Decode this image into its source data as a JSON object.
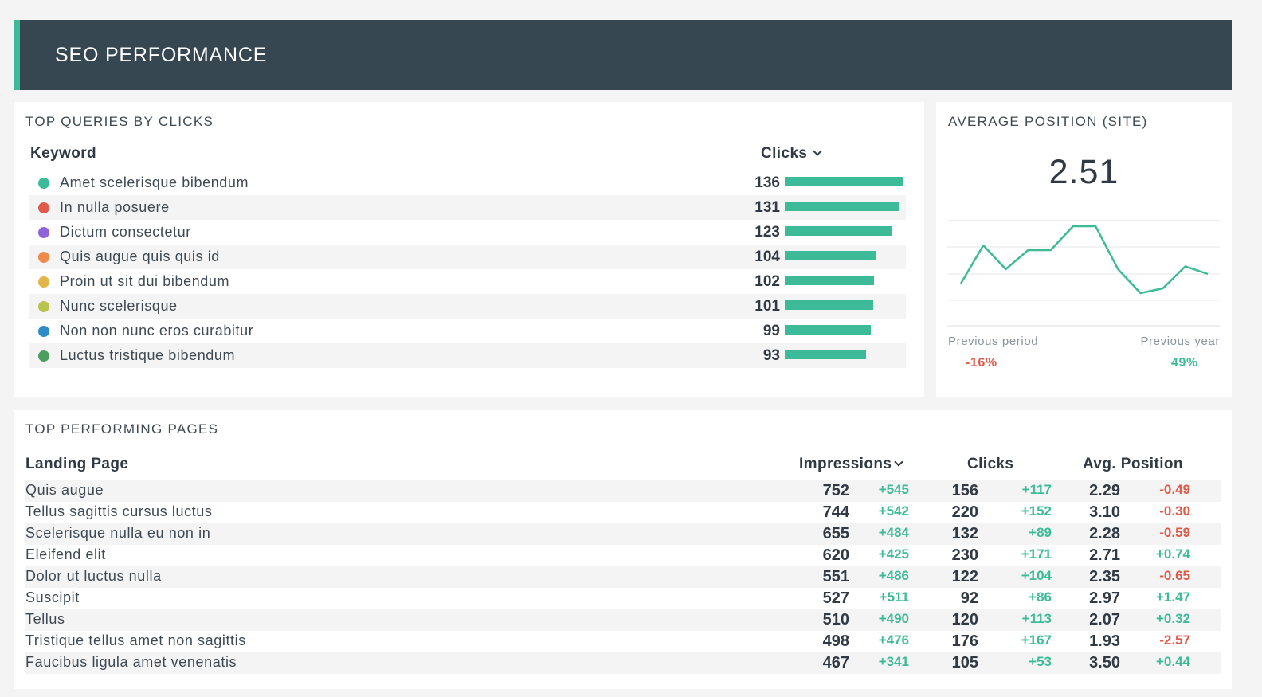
{
  "header": {
    "title": "SEO PERFORMANCE"
  },
  "queries": {
    "title": "TOP QUERIES BY CLICKS",
    "col_keyword": "Keyword",
    "col_clicks": "Clicks",
    "rows": [
      {
        "label": "Amet scelerisque bibendum",
        "value": "136",
        "clicks": 136,
        "color": "#3dbb99"
      },
      {
        "label": "In nulla posuere",
        "value": "131",
        "clicks": 131,
        "color": "#e05a4a"
      },
      {
        "label": "Dictum consectetur",
        "value": "123",
        "clicks": 123,
        "color": "#8e65d8"
      },
      {
        "label": "Quis augue quis quis id",
        "value": "104",
        "clicks": 104,
        "color": "#ee8a4a"
      },
      {
        "label": "Proin ut sit dui bibendum",
        "value": "102",
        "clicks": 102,
        "color": "#e3b548"
      },
      {
        "label": "Nunc scelerisque",
        "value": "101",
        "clicks": 101,
        "color": "#b9c44c"
      },
      {
        "label": "Non non nunc eros curabitur",
        "value": "99",
        "clicks": 99,
        "color": "#2d8bc6"
      },
      {
        "label": "Luctus tristique bibendum",
        "value": "93",
        "clicks": 93,
        "color": "#4c9e5f"
      }
    ]
  },
  "avgpos": {
    "title": "AVERAGE POSITION (SITE)",
    "value": "2.51",
    "trend": [
      2.9,
      2.5,
      2.75,
      2.55,
      2.55,
      2.3,
      2.3,
      2.75,
      3.0,
      2.95,
      2.72,
      2.8
    ],
    "prev_period_label": "Previous period",
    "prev_period_value": "-16%",
    "prev_year_label": "Previous year",
    "prev_year_value": "49%"
  },
  "pages": {
    "title": "TOP PERFORMING PAGES",
    "col_page": "Landing Page",
    "col_impressions": "Impressions",
    "col_clicks": "Clicks",
    "col_position": "Avg. Position",
    "rows": [
      {
        "page": "Quis augue",
        "imp": "752",
        "imp_d": "+545",
        "clk": "156",
        "clk_d": "+117",
        "pos": "2.29",
        "pos_d": "-0.49",
        "pos_good": true
      },
      {
        "page": "Tellus sagittis cursus luctus",
        "imp": "744",
        "imp_d": "+542",
        "clk": "220",
        "clk_d": "+152",
        "pos": "3.10",
        "pos_d": "-0.30",
        "pos_good": true
      },
      {
        "page": "Scelerisque nulla eu non in",
        "imp": "655",
        "imp_d": "+484",
        "clk": "132",
        "clk_d": "+89",
        "pos": "2.28",
        "pos_d": "-0.59",
        "pos_good": true
      },
      {
        "page": "Eleifend elit",
        "imp": "620",
        "imp_d": "+425",
        "clk": "230",
        "clk_d": "+171",
        "pos": "2.71",
        "pos_d": "+0.74",
        "pos_good": false
      },
      {
        "page": "Dolor ut luctus nulla",
        "imp": "551",
        "imp_d": "+486",
        "clk": "122",
        "clk_d": "+104",
        "pos": "2.35",
        "pos_d": "-0.65",
        "pos_good": true
      },
      {
        "page": "Suscipit",
        "imp": "527",
        "imp_d": "+511",
        "clk": "92",
        "clk_d": "+86",
        "pos": "2.97",
        "pos_d": "+1.47",
        "pos_good": false
      },
      {
        "page": "Tellus",
        "imp": "510",
        "imp_d": "+490",
        "clk": "120",
        "clk_d": "+113",
        "pos": "2.07",
        "pos_d": "+0.32",
        "pos_good": false
      },
      {
        "page": "Tristique tellus amet non sagittis",
        "imp": "498",
        "imp_d": "+476",
        "clk": "176",
        "clk_d": "+167",
        "pos": "1.93",
        "pos_d": "-2.57",
        "pos_good": true
      },
      {
        "page": "Faucibus ligula amet venenatis",
        "imp": "467",
        "imp_d": "+341",
        "clk": "105",
        "clk_d": "+53",
        "pos": "3.50",
        "pos_d": "+0.44",
        "pos_good": false
      }
    ]
  },
  "colors": {
    "accent": "#3dbb99",
    "negative": "#e05a4a",
    "header_bg": "#364751"
  }
}
